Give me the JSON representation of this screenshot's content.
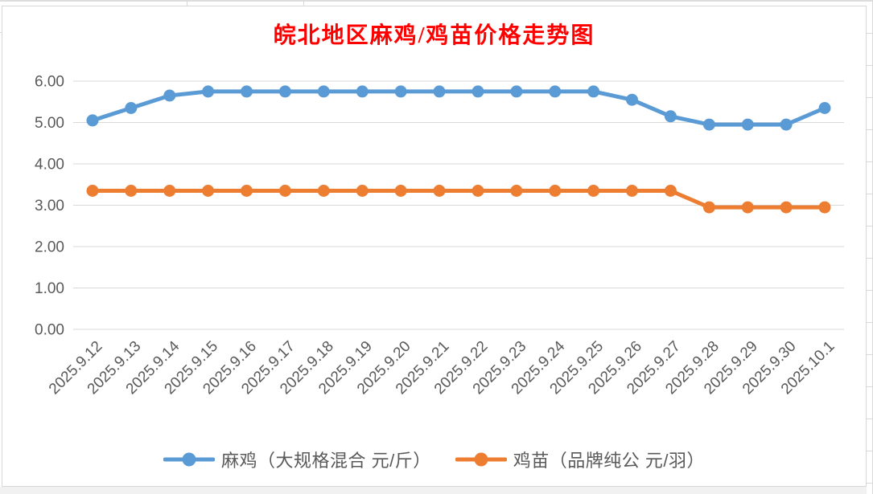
{
  "title": {
    "text": "皖北地区麻鸡/鸡苗价格走势图",
    "color": "#FF0000"
  },
  "chart_data": {
    "type": "line",
    "categories": [
      "2025.9.12",
      "2025.9.13",
      "2025.9.14",
      "2025.9.15",
      "2025.9.16",
      "2025.9.17",
      "2025.9.18",
      "2025.9.19",
      "2025.9.20",
      "2025.9.21",
      "2025.9.22",
      "2025.9.23",
      "2025.9.24",
      "2025.9.25",
      "2025.9.26",
      "2025.9.27",
      "2025.9.28",
      "2025.9.29",
      "2025.9.30",
      "2025.10.1"
    ],
    "series": [
      {
        "name": "麻鸡（大规格混合 元/斤）",
        "color": "#5B9BD5",
        "marker": "circle",
        "values": [
          5.05,
          5.35,
          5.65,
          5.75,
          5.75,
          5.75,
          5.75,
          5.75,
          5.75,
          5.75,
          5.75,
          5.75,
          5.75,
          5.75,
          5.55,
          5.15,
          4.95,
          4.95,
          4.95,
          5.35
        ]
      },
      {
        "name": "鸡苗（品牌纯公 元/羽）",
        "color": "#ED7D31",
        "marker": "circle",
        "values": [
          3.35,
          3.35,
          3.35,
          3.35,
          3.35,
          3.35,
          3.35,
          3.35,
          3.35,
          3.35,
          3.35,
          3.35,
          3.35,
          3.35,
          3.35,
          3.35,
          2.95,
          2.95,
          2.95,
          2.95
        ]
      }
    ],
    "xlabel": "",
    "ylabel": "",
    "ylim": [
      0,
      6
    ],
    "ytick_step": 1,
    "ytick_labels": [
      "0.00",
      "1.00",
      "2.00",
      "3.00",
      "4.00",
      "5.00",
      "6.00"
    ],
    "grid": true,
    "grid_color": "#D9D9D9",
    "axis_text_color": "#595959",
    "legend_position": "bottom"
  }
}
